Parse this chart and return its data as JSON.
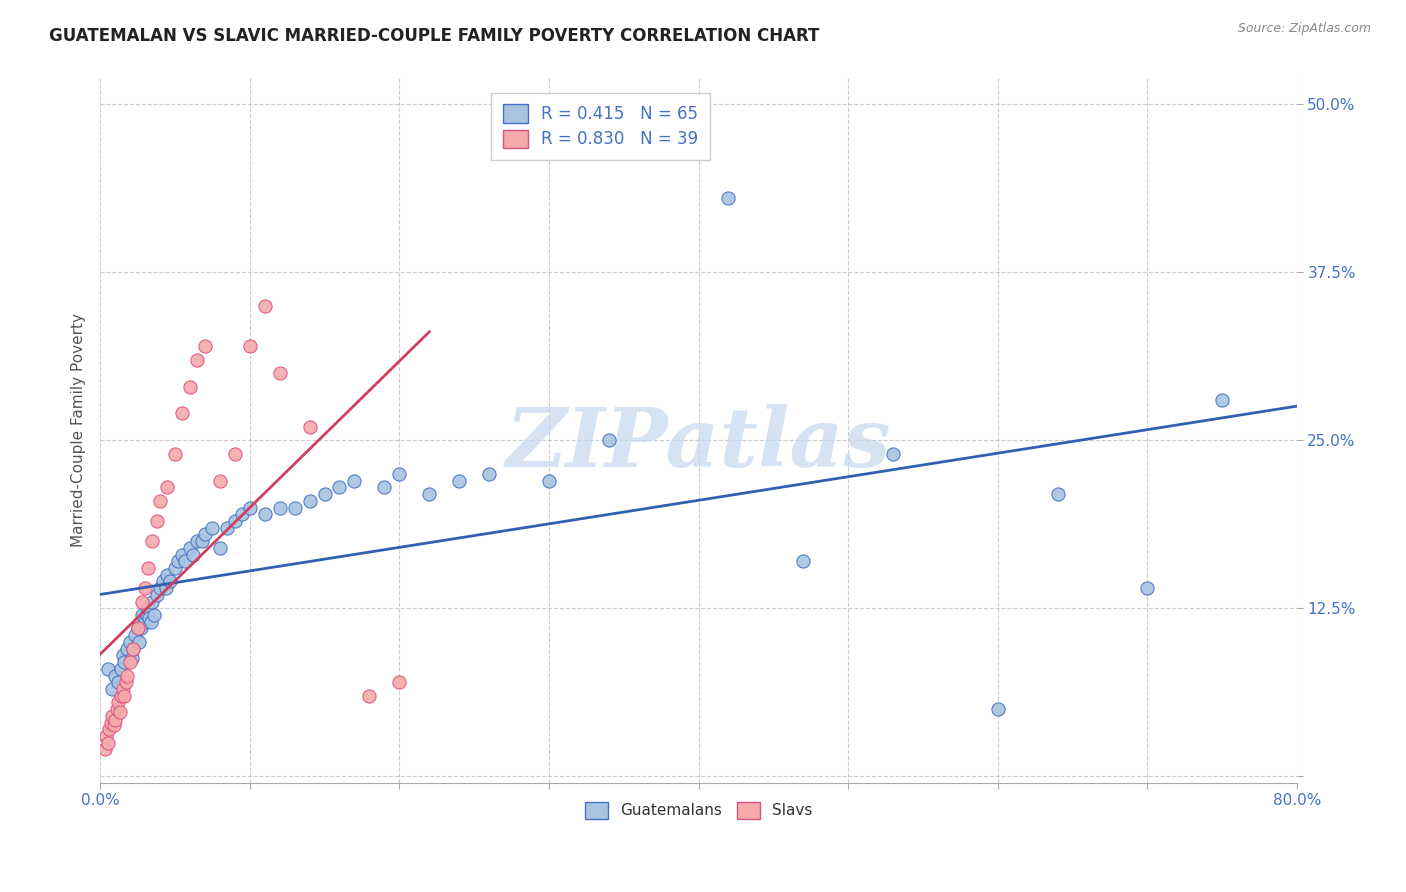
{
  "title": "GUATEMALAN VS SLAVIC MARRIED-COUPLE FAMILY POVERTY CORRELATION CHART",
  "source": "Source: ZipAtlas.com",
  "ylabel": "Married-Couple Family Poverty",
  "xlim": [
    0.0,
    0.8
  ],
  "ylim": [
    -0.005,
    0.52
  ],
  "xticks": [
    0.0,
    0.1,
    0.2,
    0.3,
    0.4,
    0.5,
    0.6,
    0.7,
    0.8
  ],
  "xticklabels": [
    "0.0%",
    "",
    "",
    "",
    "",
    "",
    "",
    "",
    "80.0%"
  ],
  "ytick_positions": [
    0.0,
    0.125,
    0.25,
    0.375,
    0.5
  ],
  "ytick_labels": [
    "",
    "12.5%",
    "25.0%",
    "37.5%",
    "50.0%"
  ],
  "blue_fill": "#A8C4E0",
  "blue_edge": "#4472C4",
  "pink_fill": "#F4AAAA",
  "pink_edge": "#E05080",
  "blue_line_color": "#3060B0",
  "pink_line_color": "#D04060",
  "R_blue": 0.415,
  "N_blue": 65,
  "R_pink": 0.83,
  "N_pink": 39,
  "blue_scatter_x": [
    0.005,
    0.008,
    0.01,
    0.012,
    0.014,
    0.015,
    0.016,
    0.018,
    0.02,
    0.021,
    0.022,
    0.023,
    0.025,
    0.026,
    0.027,
    0.028,
    0.03,
    0.031,
    0.032,
    0.033,
    0.034,
    0.035,
    0.036,
    0.038,
    0.04,
    0.042,
    0.044,
    0.045,
    0.047,
    0.05,
    0.052,
    0.055,
    0.057,
    0.06,
    0.062,
    0.065,
    0.068,
    0.07,
    0.075,
    0.08,
    0.085,
    0.09,
    0.095,
    0.1,
    0.11,
    0.12,
    0.13,
    0.14,
    0.15,
    0.16,
    0.17,
    0.19,
    0.2,
    0.22,
    0.24,
    0.26,
    0.3,
    0.34,
    0.42,
    0.47,
    0.53,
    0.6,
    0.64,
    0.7,
    0.75
  ],
  "blue_scatter_y": [
    0.08,
    0.065,
    0.075,
    0.07,
    0.08,
    0.09,
    0.085,
    0.095,
    0.1,
    0.088,
    0.095,
    0.105,
    0.11,
    0.1,
    0.11,
    0.12,
    0.115,
    0.12,
    0.125,
    0.118,
    0.115,
    0.13,
    0.12,
    0.135,
    0.14,
    0.145,
    0.14,
    0.15,
    0.145,
    0.155,
    0.16,
    0.165,
    0.16,
    0.17,
    0.165,
    0.175,
    0.175,
    0.18,
    0.185,
    0.17,
    0.185,
    0.19,
    0.195,
    0.2,
    0.195,
    0.2,
    0.2,
    0.205,
    0.21,
    0.215,
    0.22,
    0.215,
    0.225,
    0.21,
    0.22,
    0.225,
    0.22,
    0.25,
    0.43,
    0.16,
    0.24,
    0.05,
    0.21,
    0.14,
    0.28
  ],
  "pink_scatter_x": [
    0.003,
    0.004,
    0.005,
    0.006,
    0.007,
    0.008,
    0.009,
    0.01,
    0.011,
    0.012,
    0.013,
    0.014,
    0.015,
    0.016,
    0.017,
    0.018,
    0.02,
    0.022,
    0.025,
    0.028,
    0.03,
    0.032,
    0.035,
    0.038,
    0.04,
    0.045,
    0.05,
    0.055,
    0.06,
    0.065,
    0.07,
    0.08,
    0.09,
    0.1,
    0.11,
    0.12,
    0.14,
    0.18,
    0.2
  ],
  "pink_scatter_y": [
    0.02,
    0.03,
    0.025,
    0.035,
    0.04,
    0.045,
    0.038,
    0.042,
    0.05,
    0.055,
    0.048,
    0.06,
    0.065,
    0.06,
    0.07,
    0.075,
    0.085,
    0.095,
    0.11,
    0.13,
    0.14,
    0.155,
    0.175,
    0.19,
    0.205,
    0.215,
    0.24,
    0.27,
    0.29,
    0.31,
    0.32,
    0.22,
    0.24,
    0.32,
    0.35,
    0.3,
    0.26,
    0.06,
    0.07
  ],
  "watermark_text": "ZIPatlas",
  "watermark_color": "#C5D8EE",
  "background_color": "#FFFFFF",
  "grid_color": "#CCCCCC"
}
